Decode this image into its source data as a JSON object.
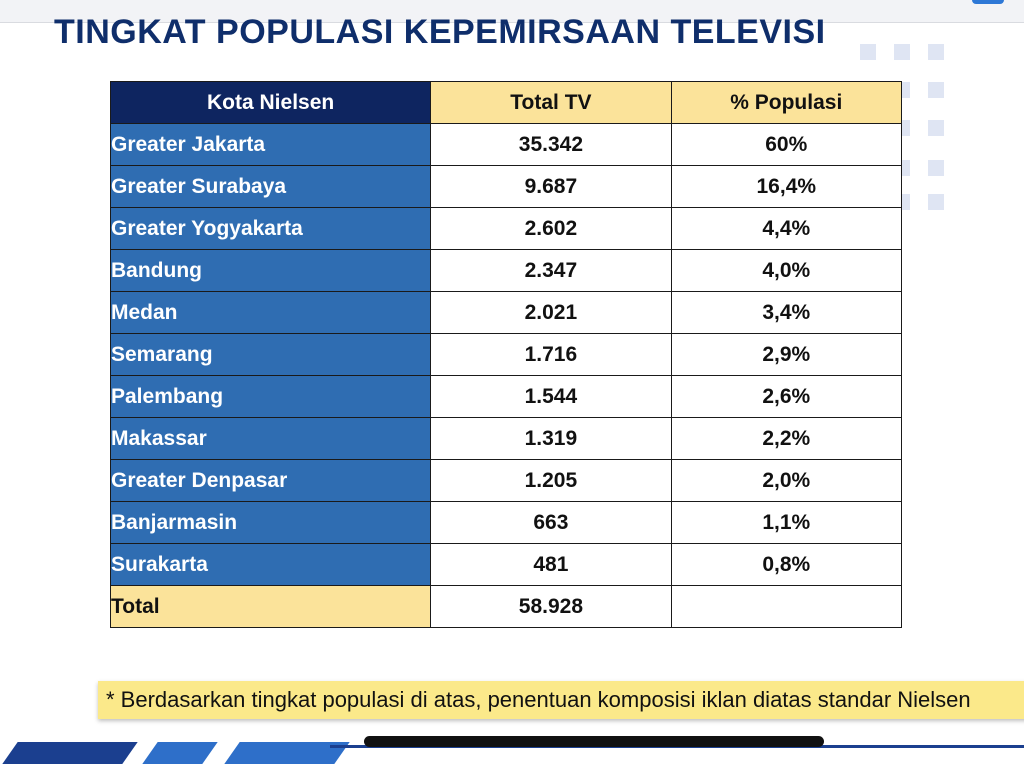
{
  "title": "TINGKAT POPULASI KEPEMIRSAAN TELEVISI",
  "table": {
    "headers": [
      "Kota Nielsen",
      "Total TV",
      "% Populasi"
    ],
    "rows": [
      {
        "city": "Greater Jakarta",
        "tv": "35.342",
        "pct": "60%"
      },
      {
        "city": "Greater Surabaya",
        "tv": "9.687",
        "pct": "16,4%"
      },
      {
        "city": "Greater Yogyakarta",
        "tv": "2.602",
        "pct": "4,4%"
      },
      {
        "city": "Bandung",
        "tv": "2.347",
        "pct": "4,0%"
      },
      {
        "city": "Medan",
        "tv": "2.021",
        "pct": "3,4%"
      },
      {
        "city": "Semarang",
        "tv": "1.716",
        "pct": "2,9%"
      },
      {
        "city": "Palembang",
        "tv": "1.544",
        "pct": "2,6%"
      },
      {
        "city": "Makassar",
        "tv": "1.319",
        "pct": "2,2%"
      },
      {
        "city": "Greater Denpasar",
        "tv": "1.205",
        "pct": "2,0%"
      },
      {
        "city": "Banjarmasin",
        "tv": "663",
        "pct": "1,1%"
      },
      {
        "city": "Surakarta",
        "tv": "481",
        "pct": "0,8%"
      }
    ],
    "total": {
      "label": "Total",
      "tv": "58.928",
      "pct": ""
    }
  },
  "note": "* Berdasarkan tingkat populasi di atas, penentuan komposisi iklan diatas standar Nielsen",
  "colors": {
    "header_dark": "#0e2560",
    "header_yellow": "#fbe39a",
    "city_blue": "#2f6db2",
    "title_navy": "#0f2e6b",
    "note_yellow": "#fbe98a"
  }
}
